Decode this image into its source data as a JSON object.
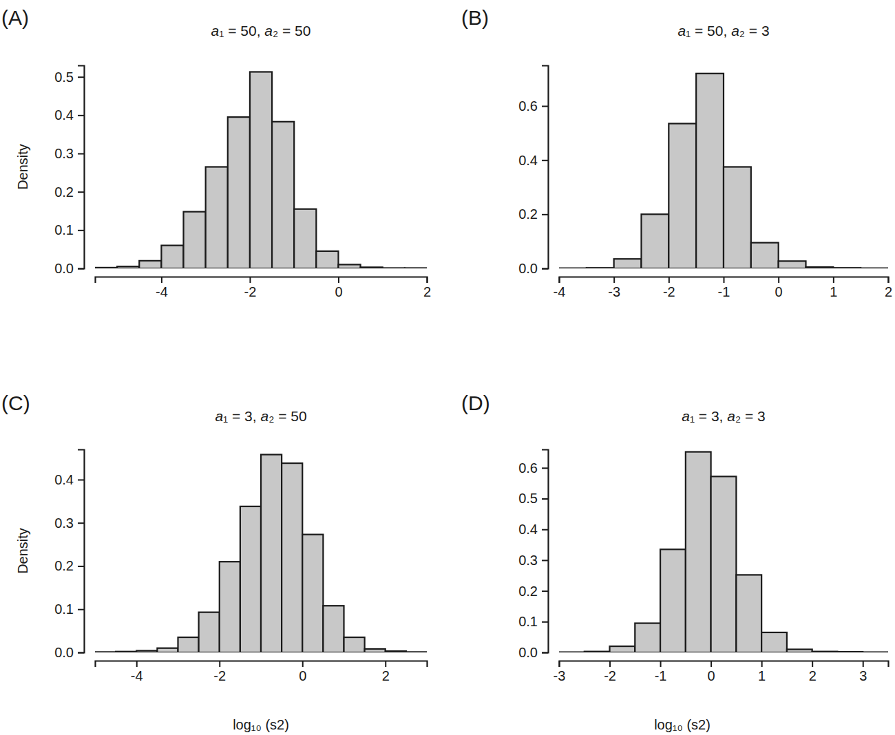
{
  "chart_data": [
    {
      "type": "histogram",
      "title": "a₁ = 50, a₂ = 50",
      "annotations": [
        "(A)"
      ],
      "y_label": "Density",
      "color": "#c8c8c8",
      "bins": [
        -5.5,
        -5,
        -4.5,
        -4,
        -3.5,
        -3,
        -2.5,
        -2,
        -1.5,
        -1,
        -0.5,
        0,
        0.5,
        1,
        1.5,
        2
      ],
      "values": [
        0.002,
        0.005,
        0.02,
        0.06,
        0.148,
        0.265,
        0.395,
        0.513,
        0.383,
        0.155,
        0.045,
        0.01,
        0.003,
        0.001,
        0.001
      ],
      "xlim": [
        -5.5,
        2
      ],
      "ylim": [
        0,
        0.53
      ],
      "xticks": [
        -4,
        -2,
        0,
        2
      ],
      "yticks": [
        {
          "value": 0,
          "label": "0.0"
        },
        {
          "value": 0.1,
          "label": "0.1"
        },
        {
          "value": 0.2,
          "label": "0.2"
        },
        {
          "value": 0.3,
          "label": "0.3"
        },
        {
          "value": 0.4,
          "label": "0.4"
        },
        {
          "value": 0.5,
          "label": "0.5"
        }
      ]
    },
    {
      "type": "histogram",
      "title": "a₁ = 50, a₂ = 3",
      "annotations": [
        "(B)"
      ],
      "color": "#c8c8c8",
      "bins": [
        -4,
        -3.5,
        -3,
        -2.5,
        -2,
        -1.5,
        -1,
        -0.5,
        0,
        0.5,
        1,
        1.5,
        2
      ],
      "values": [
        0.001,
        0.002,
        0.035,
        0.2,
        0.535,
        0.72,
        0.375,
        0.095,
        0.027,
        0.005,
        0.002,
        0.001
      ],
      "xlim": [
        -4,
        2
      ],
      "ylim": [
        0,
        0.75
      ],
      "xticks": [
        -4,
        -3,
        -2,
        -1,
        0,
        1,
        2
      ],
      "yticks": [
        {
          "value": 0,
          "label": "0.0"
        },
        {
          "value": 0.2,
          "label": "0.2"
        },
        {
          "value": 0.4,
          "label": "0.4"
        },
        {
          "value": 0.6,
          "label": "0.6"
        }
      ]
    },
    {
      "type": "histogram",
      "title": "a₁ = 3, a₂ = 50",
      "annotations": [
        "(C)"
      ],
      "y_label": "Density",
      "x_label": "log₁₀ (s2)",
      "color": "#c8c8c8",
      "bins": [
        -5,
        -4.5,
        -4,
        -3.5,
        -3,
        -2.5,
        -2,
        -1.5,
        -1,
        -0.5,
        0,
        0.5,
        1,
        1.5,
        2,
        2.5,
        3
      ],
      "values": [
        0.001,
        0.002,
        0.004,
        0.01,
        0.035,
        0.093,
        0.21,
        0.338,
        0.458,
        0.438,
        0.273,
        0.108,
        0.035,
        0.008,
        0.003,
        0.001
      ],
      "xlim": [
        -5,
        3
      ],
      "ylim": [
        0,
        0.47
      ],
      "xticks": [
        -4,
        -2,
        0,
        2
      ],
      "yticks": [
        {
          "value": 0,
          "label": "0.0"
        },
        {
          "value": 0.1,
          "label": "0.1"
        },
        {
          "value": 0.2,
          "label": "0.2"
        },
        {
          "value": 0.3,
          "label": "0.3"
        },
        {
          "value": 0.4,
          "label": "0.4"
        }
      ]
    },
    {
      "type": "histogram",
      "title": "a₁ = 3, a₂ = 3",
      "annotations": [
        "(D)"
      ],
      "x_label": "log₁₀ (s2)",
      "color": "#c8c8c8",
      "bins": [
        -3,
        -2.5,
        -2,
        -1.5,
        -1,
        -0.5,
        0,
        0.5,
        1,
        1.5,
        2,
        2.5,
        3,
        3.5
      ],
      "values": [
        0.001,
        0.003,
        0.02,
        0.095,
        0.335,
        0.652,
        0.572,
        0.252,
        0.065,
        0.01,
        0.003,
        0.002,
        0.001
      ],
      "xlim": [
        -3,
        3.5
      ],
      "ylim": [
        0,
        0.66
      ],
      "xticks": [
        -3,
        -2,
        -1,
        0,
        1,
        2,
        3
      ],
      "yticks": [
        {
          "value": 0,
          "label": "0.0"
        },
        {
          "value": 0.1,
          "label": "0.1"
        },
        {
          "value": 0.2,
          "label": "0.2"
        },
        {
          "value": 0.3,
          "label": "0.3"
        },
        {
          "value": 0.4,
          "label": "0.4"
        },
        {
          "value": 0.5,
          "label": "0.5"
        },
        {
          "value": 0.6,
          "label": "0.6"
        }
      ]
    }
  ]
}
